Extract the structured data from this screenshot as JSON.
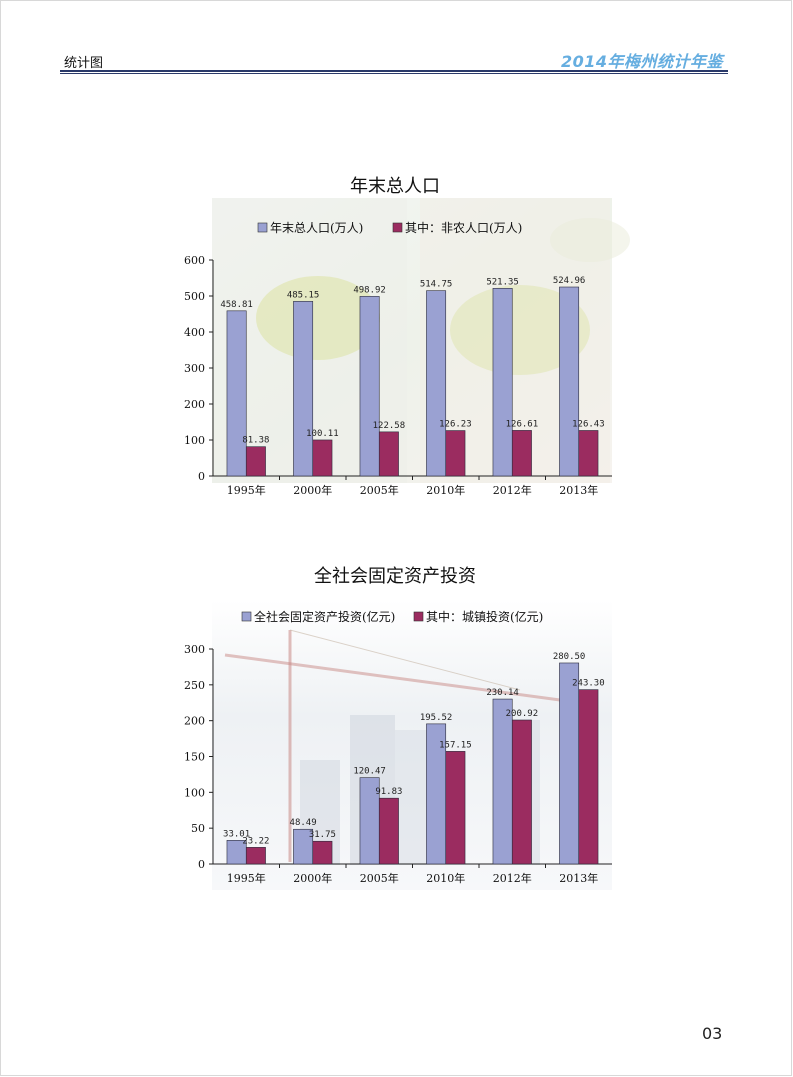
{
  "header": {
    "section": "统计图",
    "publication": "2014年梅州统计年鉴"
  },
  "page_number": "03",
  "colors": {
    "series1": "#9aa1d2",
    "series2": "#9b2c60",
    "header_accent": "#66aee0",
    "rule": "#2a3a6a"
  },
  "chart_data": [
    {
      "type": "bar",
      "title": "年末总人口",
      "categories": [
        "1995年",
        "2000年",
        "2005年",
        "2010年",
        "2012年",
        "2013年"
      ],
      "series": [
        {
          "name": "年末总人口(万人)",
          "values": [
            458.81,
            485.15,
            498.92,
            514.75,
            521.35,
            524.96
          ],
          "labels": [
            "458.81",
            "485.15",
            "498.92",
            "514.75",
            "521.35",
            "524.96"
          ]
        },
        {
          "name": "其中：非农人口(万人)",
          "values": [
            81.38,
            100.11,
            122.58,
            126.23,
            126.61,
            126.43
          ],
          "labels": [
            "81.38",
            "100.11",
            "122.58",
            "126.23",
            "126.61",
            "126.43"
          ]
        }
      ],
      "ylim": [
        0,
        600
      ],
      "yticks": [
        "0",
        "100",
        "200",
        "300",
        "400",
        "500",
        "600"
      ],
      "legend": "top"
    },
    {
      "type": "bar",
      "title": "全社会固定资产投资",
      "categories": [
        "1995年",
        "2000年",
        "2005年",
        "2010年",
        "2012年",
        "2013年"
      ],
      "series": [
        {
          "name": "全社会固定资产投资(亿元)",
          "values": [
            33.01,
            48.49,
            120.47,
            195.52,
            230.14,
            280.5
          ],
          "labels": [
            "33.01",
            "48.49",
            "120.47",
            "195.52",
            "230.14",
            "280.50"
          ]
        },
        {
          "name": "其中：城镇投资(亿元)",
          "values": [
            23.22,
            31.75,
            91.83,
            157.15,
            200.92,
            243.3
          ],
          "labels": [
            "23.22",
            "31.75",
            "91.83",
            "157.15",
            "200.92",
            "243.30"
          ]
        }
      ],
      "ylim": [
        0,
        300
      ],
      "yticks": [
        "0",
        "50",
        "100",
        "150",
        "200",
        "250",
        "300"
      ],
      "legend": "top"
    }
  ]
}
